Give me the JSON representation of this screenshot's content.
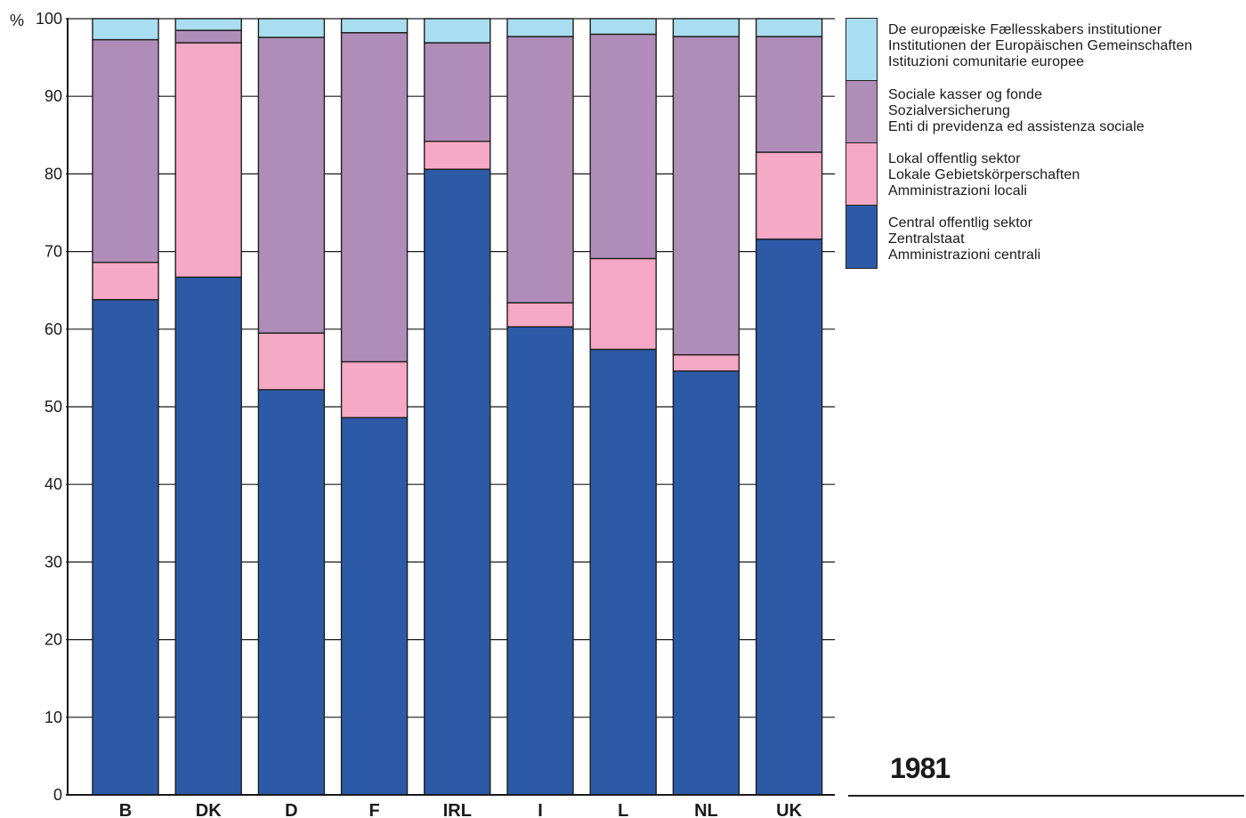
{
  "chart_data": {
    "type": "bar",
    "stacked": true,
    "orientation": "vertical",
    "categories": [
      "B",
      "DK",
      "D",
      "F",
      "IRL",
      "I",
      "L",
      "NL",
      "UK"
    ],
    "y_unit_label": "%",
    "ylim": [
      0,
      100
    ],
    "yticks": [
      0,
      10,
      20,
      30,
      40,
      50,
      60,
      70,
      80,
      90,
      100
    ],
    "grid": false,
    "legend_position": "right",
    "series": [
      {
        "key": "central",
        "names": [
          "Central offentlig sektor",
          "Zentralstaat",
          "Amministrazioni centrali"
        ],
        "color": "#2c5aa6",
        "values": [
          63.8,
          66.7,
          52.2,
          48.6,
          80.6,
          60.3,
          57.4,
          54.6,
          71.6
        ]
      },
      {
        "key": "local",
        "names": [
          "Lokal offentlig sektor",
          "Lokale Gebietskörperschaften",
          "Amministrazioni locali"
        ],
        "color": "#f6a9c4",
        "values": [
          4.8,
          30.2,
          7.3,
          7.2,
          3.6,
          3.1,
          11.7,
          2.1,
          11.2
        ]
      },
      {
        "key": "social",
        "names": [
          "Sociale kasser og fonde",
          "Sozialversicherung",
          "Enti di previdenza ed assistenza sociale"
        ],
        "color": "#b08cb8",
        "values": [
          28.7,
          1.6,
          38.1,
          42.4,
          12.7,
          34.3,
          28.9,
          41.0,
          14.9
        ]
      },
      {
        "key": "eu",
        "names": [
          "De europæiske Fællesskabers institutioner",
          "Institutionen der Europäischen Gemeinschaften",
          "Istituzioni comunitarie europee"
        ],
        "color": "#a9def0",
        "values": [
          2.7,
          1.5,
          2.4,
          1.8,
          3.1,
          2.3,
          2.0,
          2.3,
          2.3
        ]
      }
    ],
    "year": "1981"
  }
}
